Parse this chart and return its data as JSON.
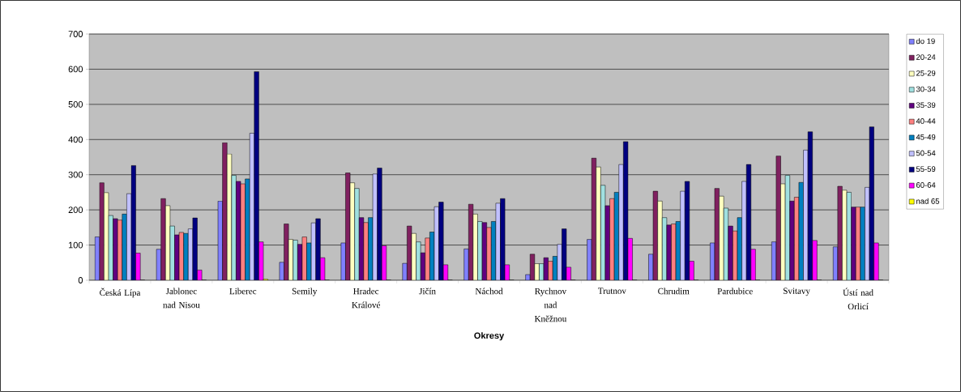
{
  "chart_data": {
    "type": "bar",
    "xlabel": "Okresy",
    "categories": [
      "Česká Lípa",
      "Jablonec nad Nisou",
      "Liberec",
      "Semily",
      "Hradec Králové",
      "Jičín",
      "Náchod",
      "Rychnov nad Kněžnou",
      "Trutnov",
      "Chrudim",
      "Pardubice",
      "Svitavy",
      "Ústí nad Orlicí"
    ],
    "series": [
      {
        "name": "do 19",
        "color": "#8080ff",
        "values": [
          123,
          88,
          225,
          51,
          106,
          48,
          89,
          16,
          116,
          74,
          106,
          109,
          95
        ]
      },
      {
        "name": "20-24",
        "color": "#802060",
        "values": [
          277,
          232,
          391,
          160,
          305,
          154,
          216,
          74,
          347,
          253,
          261,
          353,
          267
        ]
      },
      {
        "name": "25-29",
        "color": "#ffffc0",
        "values": [
          249,
          212,
          359,
          116,
          277,
          133,
          188,
          47,
          322,
          225,
          239,
          274,
          256
        ]
      },
      {
        "name": "30-34",
        "color": "#a0e0e0",
        "values": [
          184,
          154,
          298,
          114,
          261,
          109,
          167,
          47,
          270,
          178,
          205,
          298,
          250
        ]
      },
      {
        "name": "35-39",
        "color": "#600080",
        "values": [
          175,
          129,
          281,
          102,
          178,
          78,
          164,
          64,
          212,
          157,
          154,
          225,
          208
        ]
      },
      {
        "name": "40-44",
        "color": "#ff8080",
        "values": [
          171,
          136,
          274,
          123,
          164,
          120,
          150,
          54,
          232,
          160,
          140,
          236,
          208
        ]
      },
      {
        "name": "45-49",
        "color": "#0080c0",
        "values": [
          188,
          133,
          288,
          106,
          178,
          137,
          167,
          68,
          250,
          167,
          178,
          278,
          208
        ]
      },
      {
        "name": "50-54",
        "color": "#c0c0ff",
        "values": [
          246,
          146,
          418,
          163,
          302,
          209,
          219,
          102,
          329,
          253,
          281,
          370,
          264
        ]
      },
      {
        "name": "55-59",
        "color": "#000080",
        "values": [
          326,
          177,
          593,
          175,
          319,
          222,
          232,
          146,
          394,
          281,
          329,
          422,
          436
        ]
      },
      {
        "name": "60-64",
        "color": "#ff00ff",
        "values": [
          77,
          29,
          109,
          64,
          98,
          44,
          44,
          37,
          119,
          54,
          88,
          113,
          106
        ]
      },
      {
        "name": "nad 65",
        "color": "#ffff00",
        "values": [
          0,
          0,
          3,
          0,
          0,
          0,
          0,
          0,
          0,
          0,
          0,
          0,
          0
        ]
      }
    ],
    "ylim": [
      0,
      700
    ],
    "yticks": [
      0,
      100,
      200,
      300,
      400,
      500,
      600,
      700
    ],
    "grid": "y",
    "legend": "right"
  }
}
